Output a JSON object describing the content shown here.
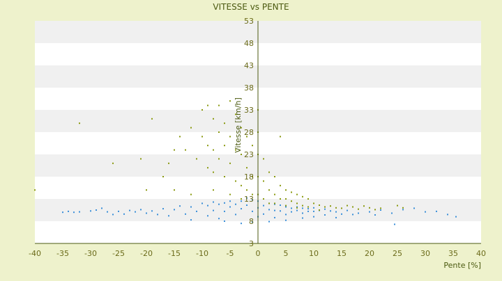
{
  "chart_data": {
    "type": "scatter",
    "title": "VITESSE vs PENTE",
    "xlabel": "Pente [%]",
    "ylabel": "Vitesse [km/h]",
    "xlim": [
      -40,
      40
    ],
    "ylim": [
      3,
      53
    ],
    "xticks": [
      -40,
      -35,
      -30,
      -25,
      -20,
      -15,
      -10,
      -5,
      0,
      5,
      10,
      15,
      20,
      25,
      30,
      35,
      40
    ],
    "yticks": [
      3,
      8,
      13,
      18,
      23,
      28,
      33,
      38,
      43,
      48,
      53
    ],
    "grid": "horizontal alternating bands",
    "legend": "none",
    "colors": {
      "background": "#eef2cc",
      "plot_band_light": "#ffffff",
      "plot_band_dark": "#f0f0f0",
      "axis": "#4b5a10",
      "series_1": "#3a8fd9",
      "series_2": "#8a9a10"
    },
    "series": [
      {
        "color": "#3a8fd9",
        "points": [
          [
            -35,
            10
          ],
          [
            -34,
            10.2
          ],
          [
            -33,
            10
          ],
          [
            -32,
            10.1
          ],
          [
            -30,
            10.3
          ],
          [
            -29,
            10.5
          ],
          [
            -28,
            10.9
          ],
          [
            -27,
            10.1
          ],
          [
            -26,
            9.5
          ],
          [
            -25,
            10.2
          ],
          [
            -24,
            9.6
          ],
          [
            -23,
            10.4
          ],
          [
            -22,
            10.1
          ],
          [
            -21,
            10.6
          ],
          [
            -20,
            9.8
          ],
          [
            -19,
            10.3
          ],
          [
            -18,
            9.5
          ],
          [
            -17,
            10.8
          ],
          [
            -16,
            9.2
          ],
          [
            -15,
            10.6
          ],
          [
            -14,
            11.4
          ],
          [
            -13,
            9.6
          ],
          [
            -12,
            11.2
          ],
          [
            -11,
            10.2
          ],
          [
            -10,
            12
          ],
          [
            -9,
            11.5
          ],
          [
            -9,
            9.2
          ],
          [
            -8,
            12.3
          ],
          [
            -8,
            10.4
          ],
          [
            -7,
            11.8
          ],
          [
            -7,
            8.6
          ],
          [
            -6,
            12.1
          ],
          [
            -6,
            10.2
          ],
          [
            -5,
            11.2
          ],
          [
            -5,
            12.5
          ],
          [
            -4,
            11.8
          ],
          [
            -4,
            9.5
          ],
          [
            -3,
            12.5
          ],
          [
            -3,
            10.8
          ],
          [
            -2,
            13.2
          ],
          [
            -2,
            11.6
          ],
          [
            -1,
            12.8
          ],
          [
            -1,
            10.2
          ],
          [
            0,
            12.5
          ],
          [
            0,
            11
          ],
          [
            0,
            9
          ],
          [
            1,
            11.5
          ],
          [
            1,
            9.6
          ],
          [
            2,
            10.6
          ],
          [
            2,
            12
          ],
          [
            3,
            11.8
          ],
          [
            3,
            10.4
          ],
          [
            3,
            8.8
          ],
          [
            4,
            11.6
          ],
          [
            4,
            10.3
          ],
          [
            5,
            11.2
          ],
          [
            5,
            9.5
          ],
          [
            6,
            10.9
          ],
          [
            6,
            10.1
          ],
          [
            7,
            11.2
          ],
          [
            7,
            10.4
          ],
          [
            8,
            10.9
          ],
          [
            8,
            9.8
          ],
          [
            9,
            10.8
          ],
          [
            9,
            10.2
          ],
          [
            10,
            11
          ],
          [
            10,
            10.2
          ],
          [
            11,
            10.4
          ],
          [
            12,
            10.7
          ],
          [
            12,
            9.4
          ],
          [
            13,
            10.3
          ],
          [
            14,
            10.1
          ],
          [
            15,
            9.6
          ],
          [
            16,
            10.4
          ],
          [
            17,
            9.5
          ],
          [
            18,
            9.8
          ],
          [
            20,
            10.1
          ],
          [
            21,
            9.4
          ],
          [
            22,
            10.5
          ],
          [
            24,
            9.8
          ],
          [
            24.5,
            7.3
          ],
          [
            26,
            10.6
          ],
          [
            28,
            10.9
          ],
          [
            30,
            10.1
          ],
          [
            32,
            10.2
          ],
          [
            34,
            9.5
          ],
          [
            35.5,
            9
          ],
          [
            -3,
            7.5
          ],
          [
            -6,
            8
          ],
          [
            -12,
            8.3
          ],
          [
            5,
            8.2
          ],
          [
            8,
            8.7
          ],
          [
            14,
            8.8
          ],
          [
            -1,
            7.8
          ],
          [
            2,
            7.9
          ],
          [
            10,
            9
          ]
        ]
      },
      {
        "color": "#8a9a10",
        "points": [
          [
            -40,
            15
          ],
          [
            -32,
            30
          ],
          [
            -26,
            21
          ],
          [
            -21,
            22
          ],
          [
            -20,
            15
          ],
          [
            -19,
            31
          ],
          [
            -17,
            18
          ],
          [
            -16,
            21
          ],
          [
            -15,
            24
          ],
          [
            -14,
            27
          ],
          [
            -13,
            24
          ],
          [
            -12,
            29
          ],
          [
            -11,
            22
          ],
          [
            -10,
            33
          ],
          [
            -10,
            27
          ],
          [
            -9,
            34
          ],
          [
            -9,
            25
          ],
          [
            -9,
            20
          ],
          [
            -8,
            31
          ],
          [
            -8,
            24
          ],
          [
            -8,
            19
          ],
          [
            -7,
            34
          ],
          [
            -7,
            28
          ],
          [
            -7,
            22
          ],
          [
            -6,
            30
          ],
          [
            -6,
            25
          ],
          [
            -6,
            18
          ],
          [
            -5,
            35
          ],
          [
            -5,
            27
          ],
          [
            -5,
            21
          ],
          [
            -4,
            32
          ],
          [
            -4,
            24
          ],
          [
            -4,
            17
          ],
          [
            -3,
            29
          ],
          [
            -3,
            23
          ],
          [
            -3,
            16
          ],
          [
            -2,
            27
          ],
          [
            -2,
            20
          ],
          [
            -2,
            15
          ],
          [
            -1,
            25
          ],
          [
            -1,
            18
          ],
          [
            -1,
            14
          ],
          [
            0,
            33
          ],
          [
            0,
            28
          ],
          [
            0,
            23
          ],
          [
            0,
            18
          ],
          [
            0,
            14
          ],
          [
            1,
            22
          ],
          [
            1,
            17
          ],
          [
            1,
            13
          ],
          [
            2,
            19
          ],
          [
            2,
            15
          ],
          [
            2,
            12
          ],
          [
            3,
            18
          ],
          [
            3,
            14
          ],
          [
            3,
            12
          ],
          [
            4,
            27
          ],
          [
            4,
            16
          ],
          [
            4,
            13
          ],
          [
            5,
            15
          ],
          [
            5,
            13
          ],
          [
            5,
            11.5
          ],
          [
            6,
            14.5
          ],
          [
            6,
            12.5
          ],
          [
            7,
            14
          ],
          [
            7,
            12
          ],
          [
            8,
            13.5
          ],
          [
            8,
            11.5
          ],
          [
            9,
            13
          ],
          [
            9,
            11.2
          ],
          [
            10,
            12
          ],
          [
            11,
            11.6
          ],
          [
            12,
            11.2
          ],
          [
            13,
            11.4
          ],
          [
            14,
            11
          ],
          [
            15,
            10.9
          ],
          [
            16,
            11.5
          ],
          [
            17,
            11.2
          ],
          [
            18,
            10.7
          ],
          [
            19,
            11.4
          ],
          [
            20,
            11
          ],
          [
            21,
            10.6
          ],
          [
            22,
            10.9
          ],
          [
            25,
            11.5
          ],
          [
            26,
            11
          ],
          [
            -15,
            15
          ],
          [
            -5,
            14
          ],
          [
            -12,
            14
          ],
          [
            -8,
            15
          ],
          [
            -3,
            13
          ],
          [
            7,
            11
          ],
          [
            11,
            10.5
          ]
        ]
      }
    ]
  }
}
